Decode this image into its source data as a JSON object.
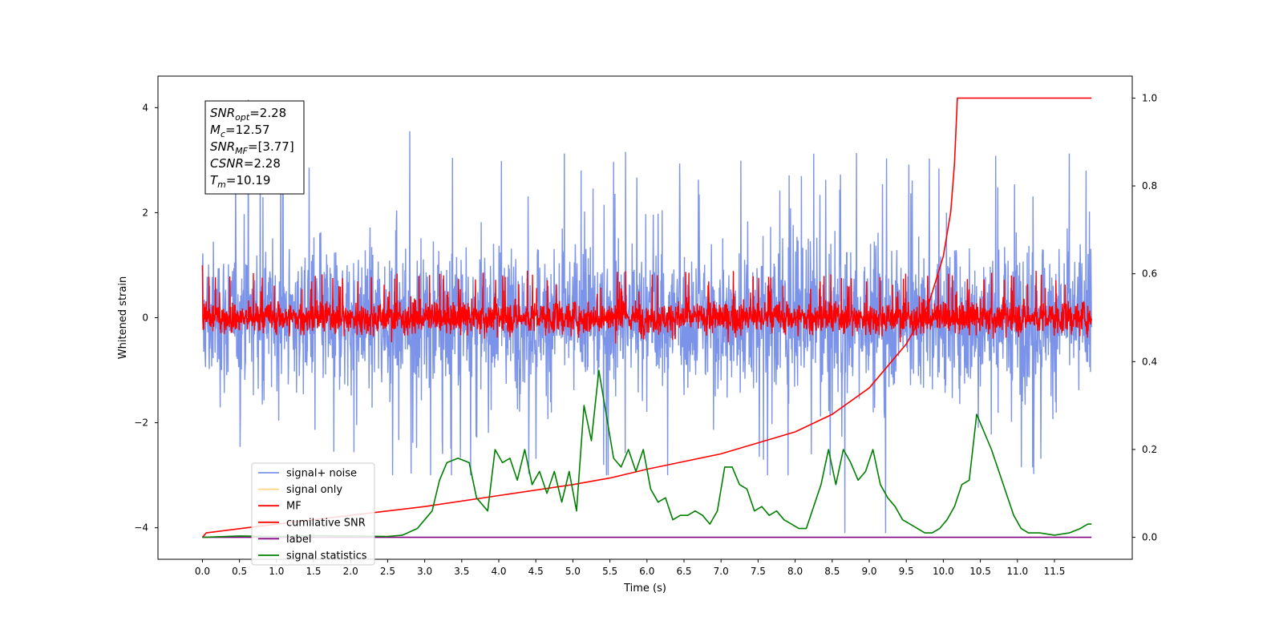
{
  "chart_data": {
    "type": "line",
    "xlabel": "Time (s)",
    "ylabel": "Whitened strain",
    "xlim": [
      -0.6,
      12.55
    ],
    "ylim": [
      -4.6,
      4.6
    ],
    "y2lim": [
      -0.05,
      1.05
    ],
    "x_ticks": [
      0.0,
      0.5,
      1.0,
      1.5,
      2.0,
      2.5,
      3.0,
      3.5,
      4.0,
      4.5,
      5.0,
      5.5,
      6.0,
      6.5,
      7.0,
      7.5,
      8.0,
      8.5,
      9.0,
      9.5,
      10.0,
      10.5,
      11.0,
      11.5
    ],
    "x_tick_labels": [
      "0.0",
      "0.5",
      "1.0",
      "1.5",
      "2.0",
      "2.5",
      "3.0",
      "3.5",
      "4.0",
      "4.5",
      "5.0",
      "5.5",
      "6.0",
      "6.5",
      "7.0",
      "7.5",
      "8.0",
      "8.5",
      "9.0",
      "9.5",
      "10.0",
      "10.5",
      "11.0",
      "11.5"
    ],
    "y_ticks": [
      -4,
      -2,
      0,
      2,
      4
    ],
    "y_tick_labels": [
      "−4",
      "−2",
      "0",
      "2",
      "4"
    ],
    "y2_ticks": [
      0.0,
      0.2,
      0.4,
      0.6,
      0.8,
      1.0
    ],
    "y2_tick_labels": [
      "0.0",
      "0.2",
      "0.4",
      "0.6",
      "0.8",
      "1.0"
    ],
    "series": [
      {
        "name": "signal+ noise",
        "axis": "left",
        "color": "#7b93e8",
        "x_range": [
          0.0,
          12.0
        ],
        "band": [
          -1.3,
          1.3
        ],
        "envelope": [
          -3.0,
          3.3
        ],
        "peaks": [
          {
            "x": 0.62,
            "y": 4.15
          },
          {
            "x": 2.8,
            "y": 3.55
          },
          {
            "x": 8.67,
            "y": -4.1
          },
          {
            "x": 9.22,
            "y": -4.1
          }
        ]
      },
      {
        "name": "signal only",
        "axis": "left",
        "color": "#fdd382",
        "values": []
      },
      {
        "name": "MF",
        "axis": "left",
        "color": "#ff0000",
        "x_range": [
          0.0,
          12.0
        ],
        "band": [
          -0.35,
          0.35
        ],
        "envelope": [
          -0.5,
          1.0
        ],
        "start": {
          "x": 0.0,
          "y": 1.0
        }
      },
      {
        "name": "cumilative SNR",
        "axis": "right",
        "color": "#ff0000",
        "x": [
          0.0,
          0.05,
          1.0,
          2.0,
          3.0,
          4.0,
          5.0,
          5.5,
          6.0,
          7.0,
          8.0,
          8.5,
          9.0,
          9.5,
          9.8,
          10.0,
          10.1,
          10.15,
          10.19,
          12.0
        ],
        "values": [
          0.0,
          0.01,
          0.03,
          0.05,
          0.07,
          0.095,
          0.12,
          0.135,
          0.155,
          0.19,
          0.24,
          0.28,
          0.34,
          0.44,
          0.53,
          0.64,
          0.74,
          0.85,
          1.0,
          1.0
        ]
      },
      {
        "name": "label",
        "axis": "right",
        "color": "#800080",
        "x": [
          0.0,
          12.0
        ],
        "values": [
          0.0,
          0.0
        ]
      },
      {
        "name": "signal statistics",
        "axis": "right",
        "color": "#008000",
        "x": [
          0.0,
          0.5,
          1.0,
          1.5,
          2.0,
          2.5,
          2.7,
          2.9,
          3.0,
          3.1,
          3.2,
          3.3,
          3.45,
          3.6,
          3.7,
          3.85,
          3.95,
          4.05,
          4.15,
          4.25,
          4.35,
          4.45,
          4.55,
          4.65,
          4.75,
          4.85,
          4.95,
          5.05,
          5.15,
          5.25,
          5.35,
          5.45,
          5.55,
          5.65,
          5.75,
          5.85,
          5.95,
          6.05,
          6.15,
          6.25,
          6.35,
          6.45,
          6.55,
          6.65,
          6.75,
          6.85,
          6.95,
          7.05,
          7.15,
          7.25,
          7.35,
          7.45,
          7.55,
          7.65,
          7.75,
          7.85,
          7.95,
          8.05,
          8.15,
          8.25,
          8.35,
          8.45,
          8.55,
          8.65,
          8.75,
          8.85,
          8.95,
          9.05,
          9.15,
          9.25,
          9.35,
          9.45,
          9.55,
          9.65,
          9.75,
          9.85,
          9.95,
          10.05,
          10.15,
          10.25,
          10.35,
          10.45,
          10.55,
          10.65,
          10.75,
          10.85,
          10.95,
          11.05,
          11.15,
          11.3,
          11.5,
          11.7,
          11.85,
          11.95,
          12.0
        ],
        "values": [
          0.0,
          0.003,
          0.002,
          0.004,
          0.003,
          0.002,
          0.005,
          0.02,
          0.04,
          0.06,
          0.13,
          0.17,
          0.18,
          0.17,
          0.09,
          0.06,
          0.2,
          0.17,
          0.18,
          0.13,
          0.2,
          0.12,
          0.15,
          0.1,
          0.15,
          0.08,
          0.15,
          0.06,
          0.3,
          0.22,
          0.38,
          0.28,
          0.18,
          0.16,
          0.2,
          0.15,
          0.2,
          0.11,
          0.08,
          0.09,
          0.04,
          0.05,
          0.05,
          0.06,
          0.05,
          0.03,
          0.06,
          0.16,
          0.16,
          0.12,
          0.11,
          0.06,
          0.07,
          0.05,
          0.06,
          0.04,
          0.03,
          0.02,
          0.02,
          0.07,
          0.12,
          0.2,
          0.12,
          0.2,
          0.17,
          0.13,
          0.15,
          0.2,
          0.12,
          0.09,
          0.07,
          0.04,
          0.03,
          0.02,
          0.01,
          0.01,
          0.02,
          0.04,
          0.07,
          0.12,
          0.13,
          0.28,
          0.24,
          0.2,
          0.15,
          0.1,
          0.05,
          0.02,
          0.01,
          0.01,
          0.005,
          0.01,
          0.02,
          0.03,
          0.03
        ]
      }
    ],
    "legend": {
      "position": "lower left",
      "entries": [
        {
          "label": "signal+ noise",
          "color": "#7b93e8"
        },
        {
          "label": "signal only",
          "color": "#fdd382"
        },
        {
          "label": "MF",
          "color": "#ff0000"
        },
        {
          "label": "cumilative SNR",
          "color": "#ff0000"
        },
        {
          "label": "label",
          "color": "#800080"
        },
        {
          "label": "signal statistics",
          "color": "#008000"
        }
      ]
    },
    "annotation": {
      "position": "top-left",
      "lines": [
        {
          "base": "SNR",
          "sub": "opt",
          "value": "=2.28"
        },
        {
          "base": "M",
          "sub": "c",
          "value": "=12.57"
        },
        {
          "base": "SNR",
          "sub": "MF",
          "value": "=[3.77]"
        },
        {
          "base": "CSNR",
          "sub": "",
          "value": "=2.28"
        },
        {
          "base": "T",
          "sub": "m",
          "value": "=10.19"
        }
      ]
    },
    "grid": false
  }
}
